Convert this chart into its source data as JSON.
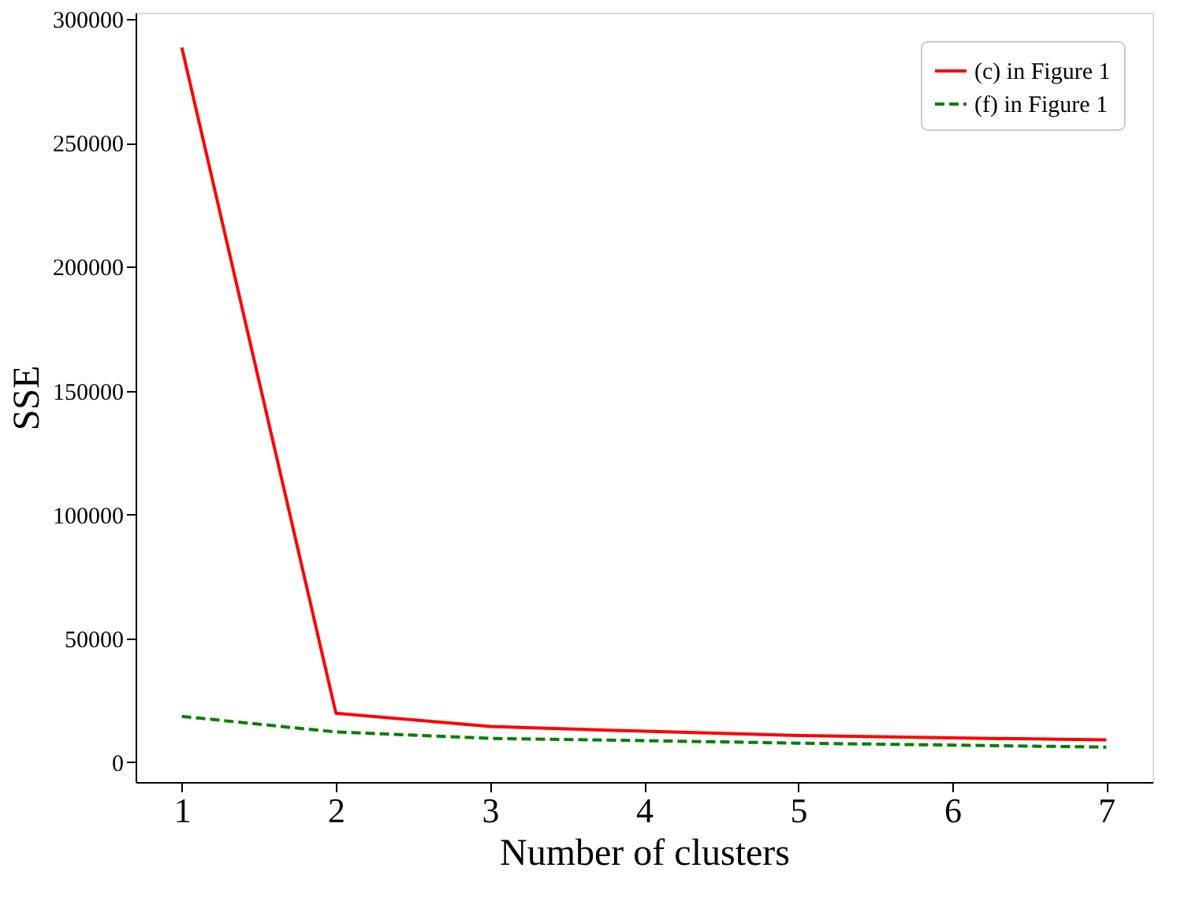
{
  "chart_data": {
    "type": "line",
    "xlabel": "Number of clusters",
    "ylabel": "SSE",
    "x": [
      1,
      2,
      3,
      4,
      5,
      6,
      7
    ],
    "series": [
      {
        "name": "(c) in Figure 1",
        "color": "#ff0000",
        "line_style": "solid",
        "values": [
          288500,
          19800,
          14400,
          12500,
          10800,
          9800,
          9000
        ]
      },
      {
        "name": "(f) in Figure 1",
        "color": "#008000",
        "line_style": "dashed",
        "values": [
          18500,
          12200,
          9600,
          8700,
          7700,
          6900,
          6100
        ]
      }
    ],
    "xlim": [
      0.7,
      7.3
    ],
    "xticks": [
      1,
      2,
      3,
      4,
      5,
      6,
      7
    ],
    "ylim": [
      -8000,
      302600
    ],
    "yticks": [
      0,
      50000,
      100000,
      150000,
      200000,
      250000,
      300000
    ],
    "grid": false,
    "legend": "top right",
    "marker": "none"
  }
}
